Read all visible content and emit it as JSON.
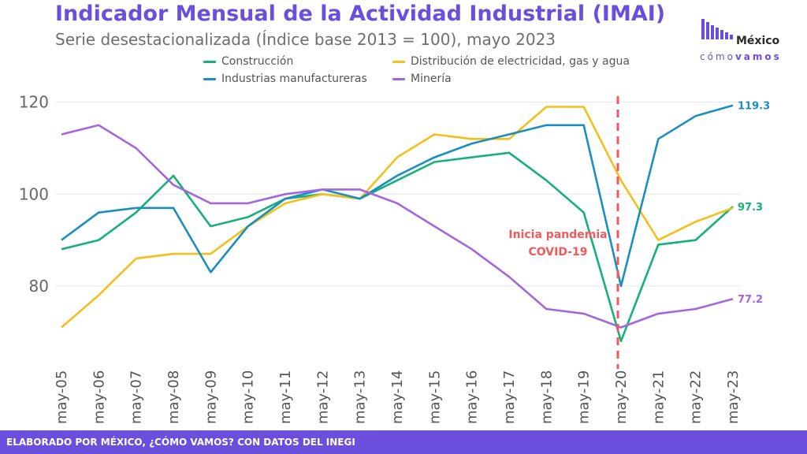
{
  "title": "Indicador Mensual de la Actividad Industrial (IMAI)",
  "subtitle": "Serie desestacionalizada (Índice base 2013 = 100), mayo 2023",
  "footer": "ELABORADO POR MÉXICO, ¿CÓMO VAMOS? CON DATOS DEL INEGI",
  "logo": {
    "line1": "México",
    "line2_light": "cómo",
    "line2_bold": "vamos"
  },
  "colors": {
    "brand": "#6b4fdc",
    "construccion": "#16b07a",
    "electricidad": "#f2bf1b",
    "manufactureras": "#1a8fbf",
    "mineria": "#a466e0",
    "pandemic": "#ef5a5a"
  },
  "chart_data": {
    "type": "line",
    "x": [
      "may-05",
      "may-06",
      "may-07",
      "may-08",
      "may-09",
      "may-10",
      "may-11",
      "may-12",
      "may-13",
      "may-14",
      "may-15",
      "may-16",
      "may-17",
      "may-18",
      "may-19",
      "may-20",
      "may-21",
      "may-22",
      "may-23"
    ],
    "ylim": [
      63,
      122
    ],
    "yticks": [
      80,
      100,
      120
    ],
    "grid": true,
    "legend_position": "top",
    "series": [
      {
        "name": "Construcción",
        "color": "#16b07a",
        "end_label": "97.3",
        "values": [
          88,
          90,
          96,
          104,
          93,
          95,
          99,
          100,
          99,
          103,
          107,
          108,
          109,
          103,
          96,
          68,
          89,
          90,
          97.3
        ]
      },
      {
        "name": "Distribución de electricidad, gas y agua",
        "color": "#f2bf1b",
        "end_label": "",
        "values": [
          71,
          78,
          86,
          87,
          87,
          93,
          98,
          100,
          99,
          108,
          113,
          112,
          112,
          119,
          119,
          103,
          90,
          94,
          97
        ]
      },
      {
        "name": "Industrias manufactureras",
        "color": "#1a8fbf",
        "end_label": "119.3",
        "values": [
          90,
          96,
          97,
          97,
          83,
          93,
          99,
          101,
          99,
          104,
          108,
          111,
          113,
          115,
          115,
          80,
          112,
          117,
          119.3
        ]
      },
      {
        "name": "Minería",
        "color": "#a466e0",
        "end_label": "77.2",
        "values": [
          113,
          115,
          110,
          102,
          98,
          98,
          100,
          101,
          101,
          98,
          93,
          88,
          82,
          75,
          74,
          71,
          74,
          75,
          77.2
        ]
      }
    ],
    "annotation": {
      "text_line1": "Inicia pandemia",
      "text_line2": "COVID-19",
      "x_label": "may-20"
    }
  }
}
